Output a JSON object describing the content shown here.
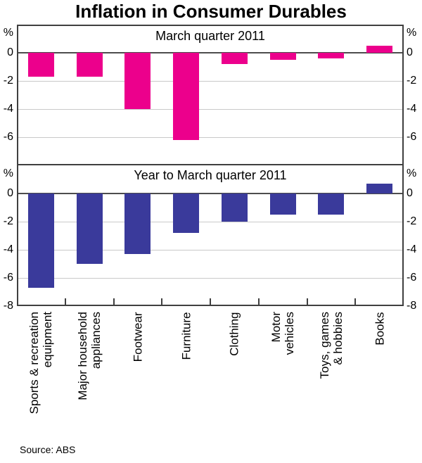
{
  "page": {
    "title": "Inflation in Consumer Durables",
    "source": "Source: ABS"
  },
  "chart_data": [
    {
      "type": "bar",
      "panel": "top",
      "title": "March quarter 2011",
      "unit": "%",
      "bar_color": "#EC008C",
      "ylim": [
        -8,
        2
      ],
      "yticks": [
        0,
        -2,
        -4,
        -6
      ],
      "grid": true,
      "categories": [
        "Sports & recreation equipment",
        "Major household appliances",
        "Footwear",
        "Furniture",
        "Clothing",
        "Motor vehicles",
        "Toys, games & hobbies",
        "Books"
      ],
      "values": [
        -1.7,
        -1.7,
        -4.0,
        -6.2,
        -0.8,
        -0.5,
        -0.4,
        0.5
      ]
    },
    {
      "type": "bar",
      "panel": "bottom",
      "title": "Year to March quarter 2011",
      "unit": "%",
      "bar_color": "#3A3A9B",
      "ylim": [
        -8,
        2
      ],
      "yticks": [
        0,
        -2,
        -4,
        -6,
        -8
      ],
      "grid": true,
      "categories": [
        "Sports & recreation equipment",
        "Major household appliances",
        "Footwear",
        "Furniture",
        "Clothing",
        "Motor vehicles",
        "Toys, games & hobbies",
        "Books"
      ],
      "values": [
        -6.7,
        -5.0,
        -4.3,
        -2.8,
        -2.0,
        -1.5,
        -1.5,
        0.7
      ]
    }
  ],
  "category_label_lines": [
    [
      "Sports & recreation",
      "equipment"
    ],
    [
      "Major household",
      "appliances"
    ],
    [
      "Footwear"
    ],
    [
      "Furniture"
    ],
    [
      "Clothing"
    ],
    [
      "Motor",
      "vehicles"
    ],
    [
      "Toys, games",
      "& hobbies"
    ],
    [
      "Books"
    ]
  ]
}
